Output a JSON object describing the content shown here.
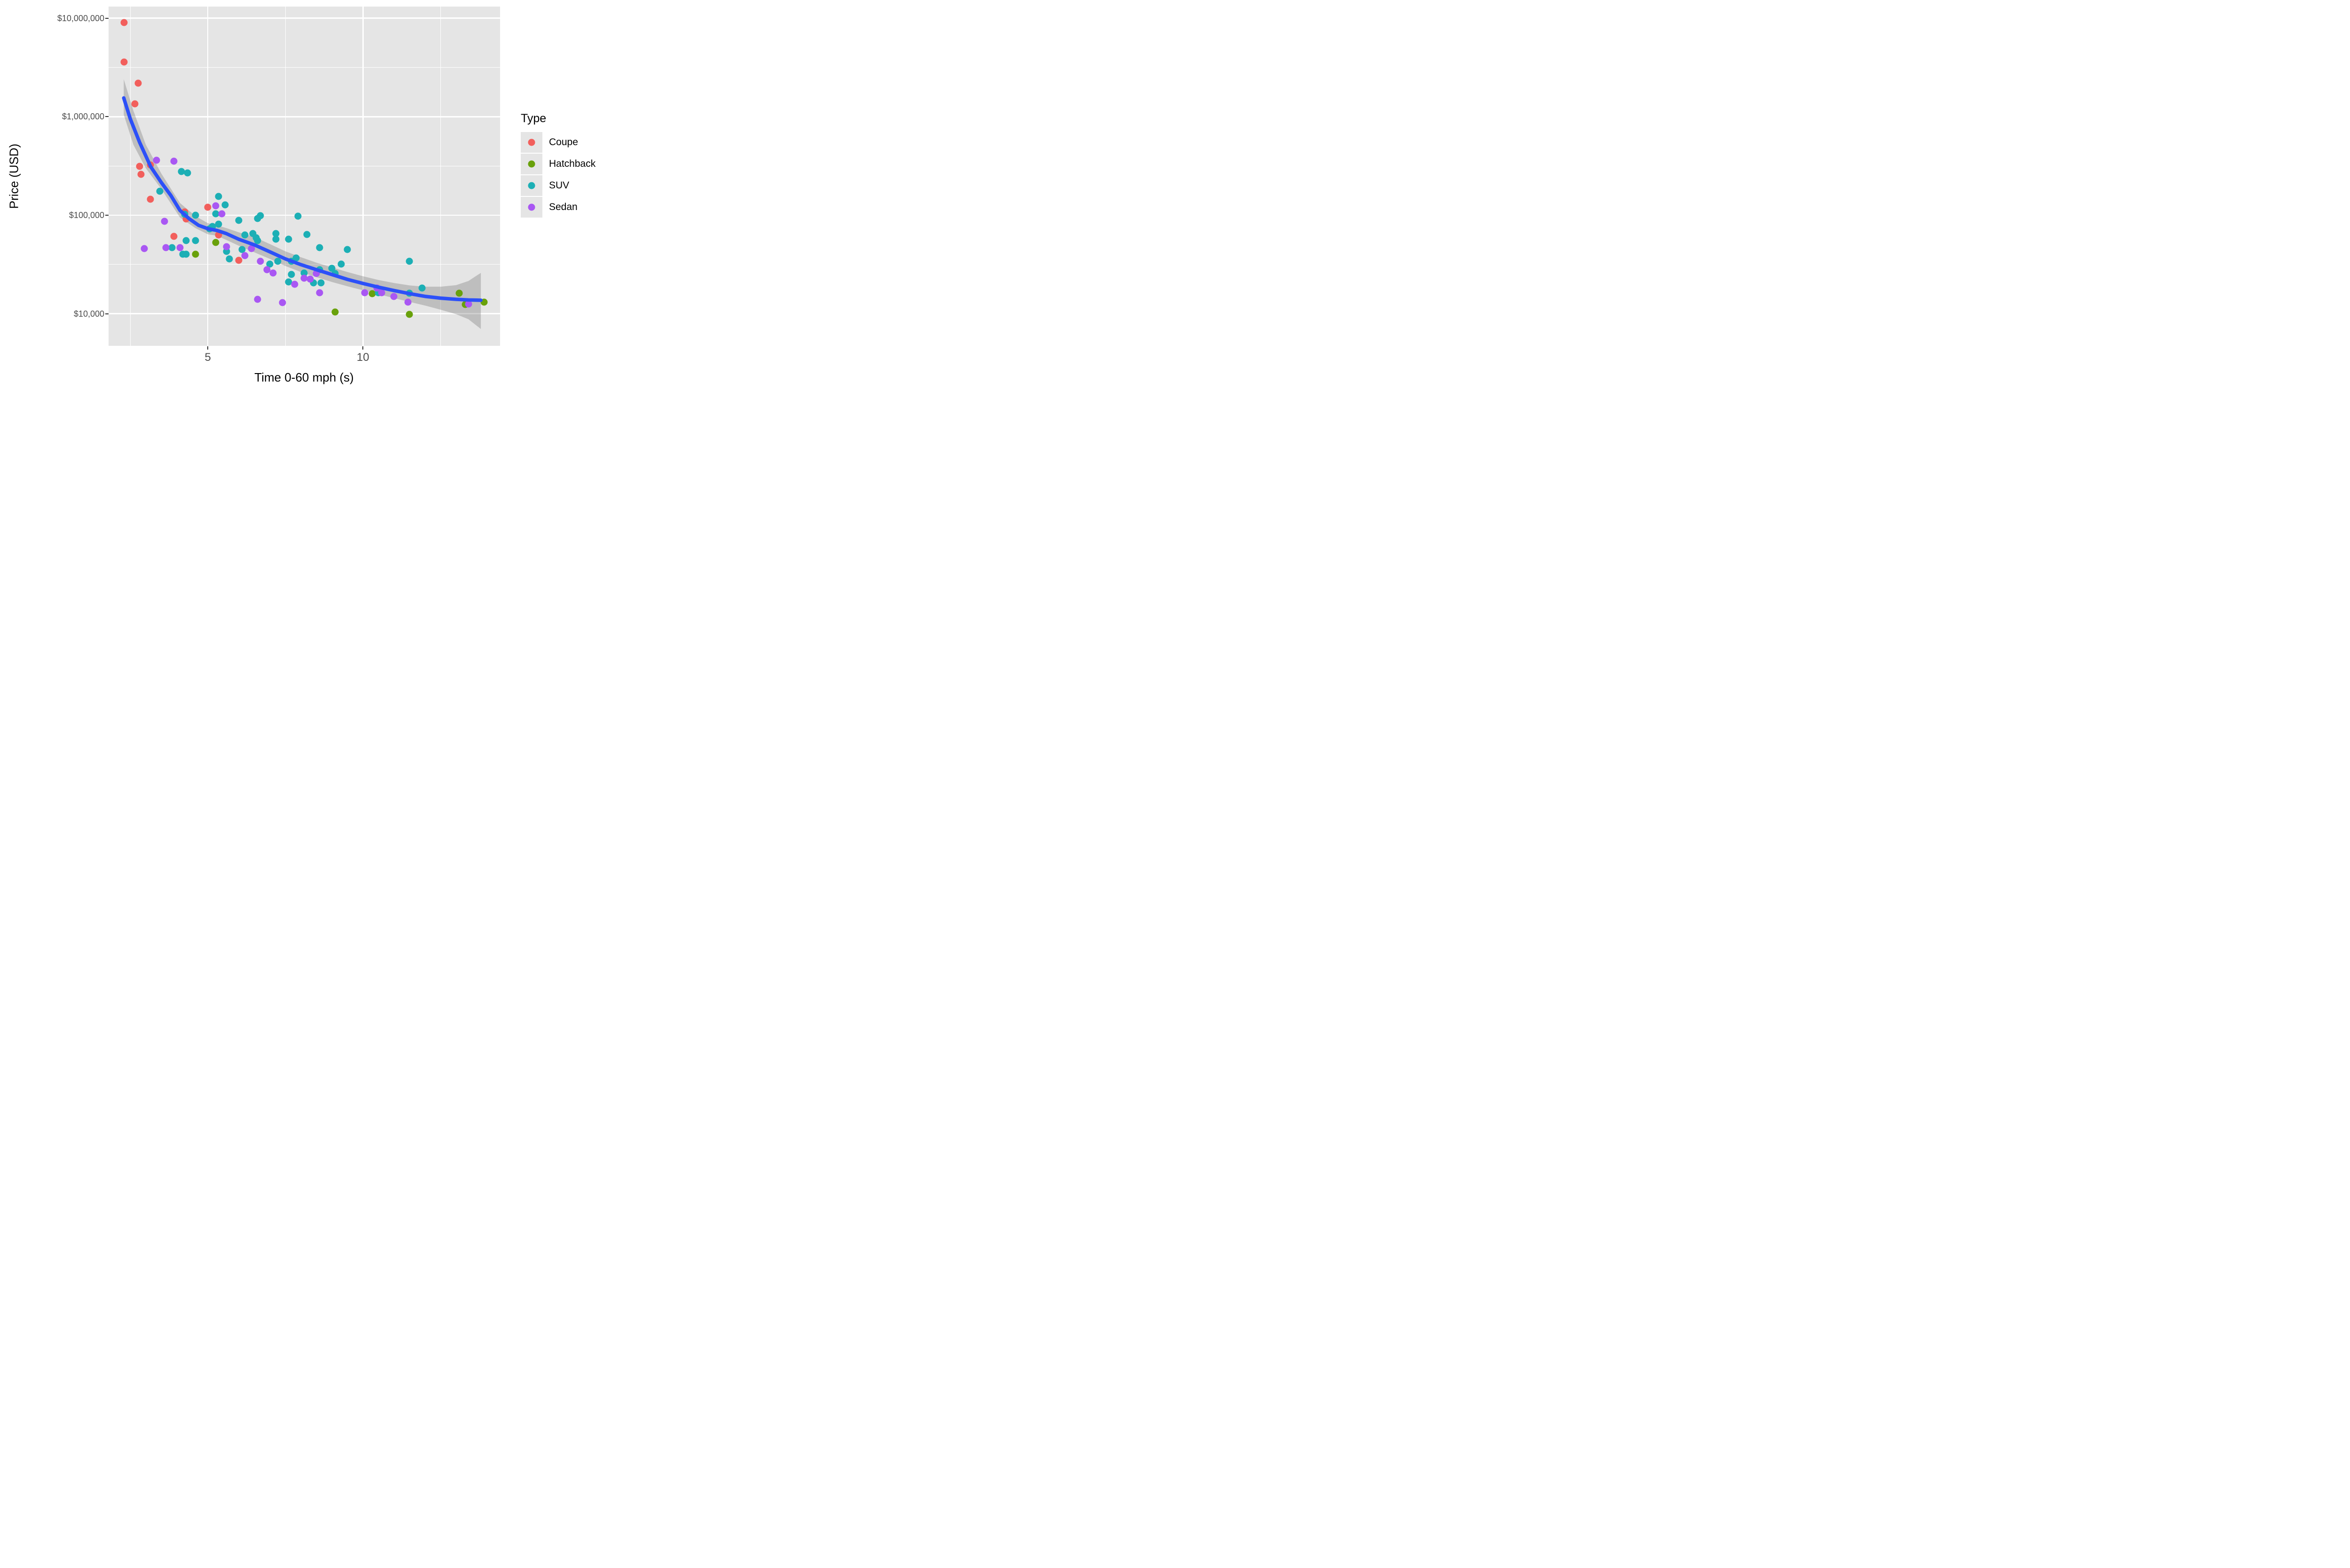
{
  "chart_data": {
    "type": "scatter",
    "title": "",
    "xlabel": "Time 0-60 mph (s)",
    "ylabel": "Price (USD)",
    "x_scale": "linear",
    "y_scale": "log10",
    "x_domain": [
      1.8,
      14.42
    ],
    "y_domain_log10": [
      3.674,
      7.118
    ],
    "grid": true,
    "legend_position": "right",
    "panel_bg": "#E5E5E5",
    "x_major_ticks": [
      {
        "value": 5,
        "label": "5"
      },
      {
        "value": 10,
        "label": "10"
      }
    ],
    "x_minor_ticks": [
      2.5,
      7.5,
      12.5
    ],
    "y_major_ticks": [
      {
        "value": 10000000,
        "label": "$10,000,000"
      },
      {
        "value": 1000000,
        "label": "$1,000,000"
      },
      {
        "value": 100000,
        "label": "$100,000"
      },
      {
        "value": 10000,
        "label": "$10,000"
      }
    ],
    "y_minor_ticks_log10": [
      6.5,
      5.5,
      4.5
    ],
    "series": [
      {
        "name": "Coupe",
        "color": "#F25F5C",
        "points": [
          [
            2.3,
            9000000
          ],
          [
            2.3,
            3600000
          ],
          [
            2.75,
            2200000
          ],
          [
            2.65,
            1350000
          ],
          [
            2.8,
            315000
          ],
          [
            3.15,
            325000
          ],
          [
            2.85,
            260000
          ],
          [
            3.15,
            145000
          ],
          [
            3.9,
            61000
          ],
          [
            4.25,
            108000
          ],
          [
            4.3,
            92000
          ],
          [
            5.0,
            120000
          ],
          [
            5.35,
            63000
          ],
          [
            6.0,
            35000
          ]
        ]
      },
      {
        "name": "Hatchback",
        "color": "#69A10B",
        "points": [
          [
            4.6,
            40000
          ],
          [
            5.25,
            53000
          ],
          [
            9.1,
            10400
          ],
          [
            10.3,
            15900
          ],
          [
            11.5,
            9800
          ],
          [
            13.1,
            16200
          ],
          [
            13.3,
            12400
          ],
          [
            13.9,
            13100
          ]
        ]
      },
      {
        "name": "SUV",
        "color": "#1CAFB5",
        "points": [
          [
            3.45,
            175000
          ],
          [
            3.85,
            47000
          ],
          [
            4.15,
            277000
          ],
          [
            4.35,
            270000
          ],
          [
            4.2,
            40000
          ],
          [
            4.3,
            40000
          ],
          [
            4.3,
            55000
          ],
          [
            4.25,
            102000
          ],
          [
            4.6,
            100000
          ],
          [
            4.6,
            55000
          ],
          [
            5.05,
            73000
          ],
          [
            5.15,
            77000
          ],
          [
            5.35,
            81000
          ],
          [
            5.25,
            103000
          ],
          [
            5.35,
            155000
          ],
          [
            5.55,
            128000
          ],
          [
            5.6,
            43000
          ],
          [
            5.7,
            36000
          ],
          [
            6.0,
            89000
          ],
          [
            6.1,
            45000
          ],
          [
            6.2,
            63000
          ],
          [
            6.45,
            65000
          ],
          [
            6.55,
            59000
          ],
          [
            6.6,
            93000
          ],
          [
            6.6,
            55000
          ],
          [
            6.7,
            99000
          ],
          [
            7.0,
            32000
          ],
          [
            7.2,
            65000
          ],
          [
            7.2,
            57000
          ],
          [
            7.25,
            34000
          ],
          [
            7.6,
            57000
          ],
          [
            7.6,
            21000
          ],
          [
            7.7,
            34000
          ],
          [
            7.7,
            25000
          ],
          [
            7.85,
            37000
          ],
          [
            7.9,
            98000
          ],
          [
            8.1,
            26000
          ],
          [
            8.2,
            64000
          ],
          [
            8.4,
            20500
          ],
          [
            8.65,
            20500
          ],
          [
            8.6,
            28000
          ],
          [
            9.0,
            29000
          ],
          [
            9.1,
            25500
          ],
          [
            9.3,
            32000
          ],
          [
            9.5,
            45000
          ],
          [
            8.6,
            47000
          ],
          [
            10.5,
            16400
          ],
          [
            11.5,
            34000
          ],
          [
            11.5,
            16200
          ],
          [
            11.9,
            18200
          ]
        ]
      },
      {
        "name": "Sedan",
        "color": "#A957F3",
        "points": [
          [
            2.95,
            46000
          ],
          [
            3.35,
            360000
          ],
          [
            3.65,
            47000
          ],
          [
            3.6,
            87000
          ],
          [
            3.9,
            355000
          ],
          [
            4.1,
            47000
          ],
          [
            5.25,
            125000
          ],
          [
            5.45,
            103000
          ],
          [
            5.6,
            48000
          ],
          [
            6.2,
            39000
          ],
          [
            6.4,
            46000
          ],
          [
            6.6,
            14000
          ],
          [
            6.7,
            34000
          ],
          [
            6.9,
            28000
          ],
          [
            7.1,
            26000
          ],
          [
            7.4,
            13000
          ],
          [
            7.8,
            20000
          ],
          [
            8.1,
            23000
          ],
          [
            8.3,
            22500
          ],
          [
            8.5,
            25500
          ],
          [
            8.6,
            16400
          ],
          [
            10.05,
            16300
          ],
          [
            10.45,
            18300
          ],
          [
            10.6,
            16400
          ],
          [
            11.0,
            15000
          ],
          [
            11.45,
            13100
          ],
          [
            13.4,
            12600
          ]
        ]
      }
    ],
    "smooth": {
      "line_color": "#2C50F8",
      "band_color": "rgba(100,100,100,0.30)",
      "line": [
        [
          2.29,
          1550000
        ],
        [
          2.5,
          950000
        ],
        [
          2.8,
          550000
        ],
        [
          3.16,
          310000
        ],
        [
          3.5,
          215000
        ],
        [
          3.8,
          160000
        ],
        [
          4.1,
          112000
        ],
        [
          4.4,
          92000
        ],
        [
          4.7,
          79000
        ],
        [
          5.0,
          73000
        ],
        [
          5.3,
          70000
        ],
        [
          5.6,
          65000
        ],
        [
          6.0,
          57000
        ],
        [
          6.5,
          50000
        ],
        [
          7.0,
          42500
        ],
        [
          7.5,
          36000
        ],
        [
          8.0,
          31500
        ],
        [
          8.5,
          28000
        ],
        [
          9.0,
          25000
        ],
        [
          9.5,
          22300
        ],
        [
          10.0,
          20300
        ],
        [
          10.5,
          18600
        ],
        [
          11.0,
          17200
        ],
        [
          11.5,
          16000
        ],
        [
          12.0,
          15000
        ],
        [
          12.5,
          14400
        ],
        [
          13.0,
          14000
        ],
        [
          13.4,
          13800
        ],
        [
          13.8,
          13700
        ]
      ],
      "band": [
        [
          2.29,
          1050000,
          2400000
        ],
        [
          2.6,
          520000,
          1150000
        ],
        [
          3.0,
          300000,
          520000
        ],
        [
          3.5,
          185000,
          265000
        ],
        [
          4.1,
          95000,
          133000
        ],
        [
          4.6,
          74000,
          98000
        ],
        [
          5.0,
          64000,
          83000
        ],
        [
          5.3,
          62000,
          79000
        ],
        [
          5.6,
          56000,
          74000
        ],
        [
          6.0,
          49000,
          67000
        ],
        [
          6.5,
          42000,
          60000
        ],
        [
          7.0,
          36000,
          51000
        ],
        [
          7.5,
          30500,
          43000
        ],
        [
          8.0,
          26500,
          37500
        ],
        [
          8.5,
          23500,
          33000
        ],
        [
          9.0,
          21000,
          29500
        ],
        [
          9.5,
          19000,
          26500
        ],
        [
          10.0,
          17300,
          24000
        ],
        [
          10.5,
          15800,
          22000
        ],
        [
          11.0,
          14400,
          20500
        ],
        [
          11.5,
          13200,
          19400
        ],
        [
          12.0,
          12100,
          18800
        ],
        [
          12.5,
          11000,
          18800
        ],
        [
          13.0,
          9900,
          19500
        ],
        [
          13.4,
          8800,
          21500
        ],
        [
          13.8,
          7000,
          26000
        ]
      ]
    }
  },
  "legend": {
    "title": "Type",
    "items": [
      {
        "label": "Coupe",
        "color": "#F25F5C"
      },
      {
        "label": "Hatchback",
        "color": "#69A10B"
      },
      {
        "label": "SUV",
        "color": "#1CAFB5"
      },
      {
        "label": "Sedan",
        "color": "#A957F3"
      }
    ]
  }
}
